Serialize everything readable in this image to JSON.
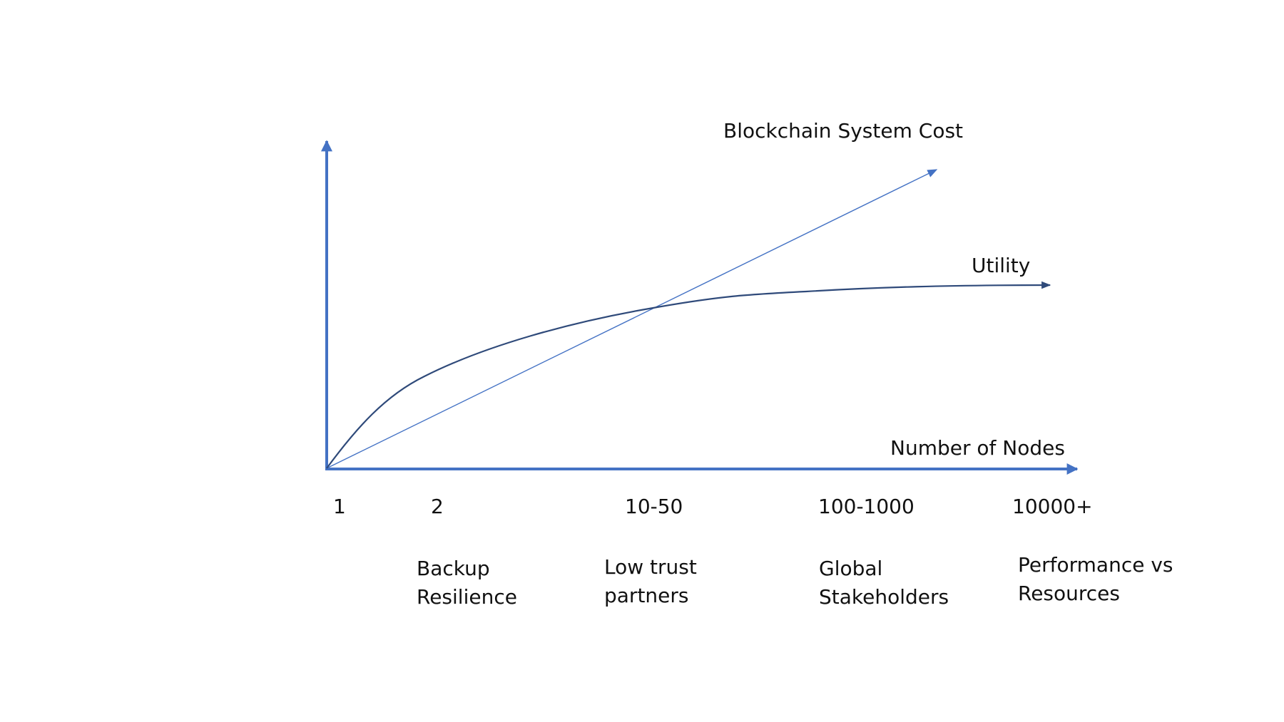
{
  "curves": {
    "cost_label": "Blockchain System Cost",
    "utility_label": "Utility",
    "x_axis_label": "Number of Nodes"
  },
  "ticks": [
    "1",
    "2",
    "10-50",
    "100-1000",
    "10000+"
  ],
  "descriptions": [
    {
      "line1": "Backup",
      "line2": "Resilience"
    },
    {
      "line1": "Low trust",
      "line2": "partners"
    },
    {
      "line1": "Global",
      "line2": "Stakeholders"
    },
    {
      "line1": "Performance vs",
      "line2": "Resources"
    }
  ],
  "colors": {
    "axis": "#4472C4",
    "cost_line": "#4472C4",
    "utility_curve": "#2F4A7A",
    "text": "#111111"
  }
}
